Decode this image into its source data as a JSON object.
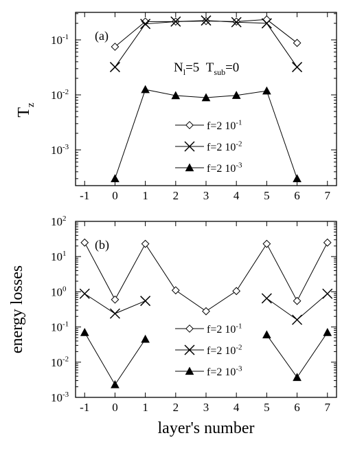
{
  "chart_data": [
    {
      "type": "line",
      "panel_label": "(a)",
      "ylabel": "T",
      "ylabel_sub": "z",
      "y_scale": "log",
      "xlim": [
        -1.3,
        7.3
      ],
      "ylim_log10": [
        -3.65,
        -0.5
      ],
      "x_ticks": [
        "-1",
        "0",
        "1",
        "2",
        "3",
        "4",
        "5",
        "6",
        "7"
      ],
      "y_ticks": [
        {
          "base": "10",
          "exp": "-1",
          "value": 0.1
        },
        {
          "base": "10",
          "exp": "-2",
          "value": 0.01
        },
        {
          "base": "10",
          "exp": "-3",
          "value": 0.001
        }
      ],
      "annotation": {
        "n_main": "N",
        "n_sub": "l",
        "n_val": "=5",
        "t_main": "T",
        "t_sub": "sub",
        "t_val": "=0"
      },
      "legend_position": "lower-center",
      "series": [
        {
          "name": "f=2 10",
          "name_exp": "-1",
          "marker": "diamond-open",
          "segments": [
            [
              [
                0,
                0.075
              ],
              [
                1,
                0.215
              ],
              [
                2,
                0.215
              ],
              [
                3,
                0.22
              ],
              [
                4,
                0.215
              ],
              [
                5,
                0.235
              ],
              [
                6,
                0.088
              ]
            ]
          ]
        },
        {
          "name": "f=2 10",
          "name_exp": "-2",
          "marker": "x",
          "segments": [
            [
              [
                0,
                0.032
              ],
              [
                1,
                0.195
              ],
              [
                2,
                0.215
              ],
              [
                3,
                0.225
              ],
              [
                4,
                0.21
              ],
              [
                5,
                0.2
              ],
              [
                6,
                0.032
              ]
            ]
          ]
        },
        {
          "name": "f=2 10",
          "name_exp": "-3",
          "marker": "triangle-filled",
          "segments": [
            [
              [
                0,
                0.0003
              ],
              [
                1,
                0.0125
              ],
              [
                2,
                0.0097
              ],
              [
                3,
                0.0089
              ],
              [
                4,
                0.0098
              ],
              [
                5,
                0.0118
              ],
              [
                6,
                0.0003
              ]
            ]
          ]
        }
      ]
    },
    {
      "type": "line",
      "panel_label": "(b)",
      "ylabel": "energy losses",
      "y_scale": "log",
      "xlabel": "layer's number",
      "xlim": [
        -1.3,
        7.3
      ],
      "ylim_log10": [
        -3,
        2
      ],
      "x_ticks": [
        "-1",
        "0",
        "1",
        "2",
        "3",
        "4",
        "5",
        "6",
        "7"
      ],
      "y_ticks": [
        {
          "base": "10",
          "exp": "2",
          "value": 100
        },
        {
          "base": "10",
          "exp": "1",
          "value": 10
        },
        {
          "base": "10",
          "exp": "0",
          "value": 1
        },
        {
          "base": "10",
          "exp": "-1",
          "value": 0.1
        },
        {
          "base": "10",
          "exp": "-2",
          "value": 0.01
        },
        {
          "base": "10",
          "exp": "-3",
          "value": 0.001
        }
      ],
      "legend_position": "lower-center",
      "series": [
        {
          "name": "f=2 10",
          "name_exp": "-1",
          "marker": "diamond-open",
          "segments": [
            [
              [
                -1,
                25
              ],
              [
                0,
                0.6
              ],
              [
                1,
                23
              ],
              [
                2,
                1.1
              ],
              [
                3,
                0.28
              ],
              [
                4,
                1.05
              ],
              [
                5,
                23
              ],
              [
                6,
                0.55
              ],
              [
                7,
                25
              ]
            ]
          ]
        },
        {
          "name": "f=2 10",
          "name_exp": "-2",
          "marker": "x",
          "segments": [
            [
              [
                -1,
                0.88
              ],
              [
                0,
                0.24
              ],
              [
                1,
                0.55
              ]
            ],
            [
              [
                5,
                0.65
              ],
              [
                6,
                0.16
              ],
              [
                7,
                0.88
              ]
            ]
          ]
        },
        {
          "name": "f=2 10",
          "name_exp": "-3",
          "marker": "triangle-filled",
          "segments": [
            [
              [
                -1,
                0.07
              ],
              [
                0,
                0.0023
              ],
              [
                1,
                0.045
              ]
            ],
            [
              [
                5,
                0.06
              ],
              [
                6,
                0.0037
              ],
              [
                7,
                0.07
              ]
            ]
          ]
        }
      ]
    }
  ]
}
